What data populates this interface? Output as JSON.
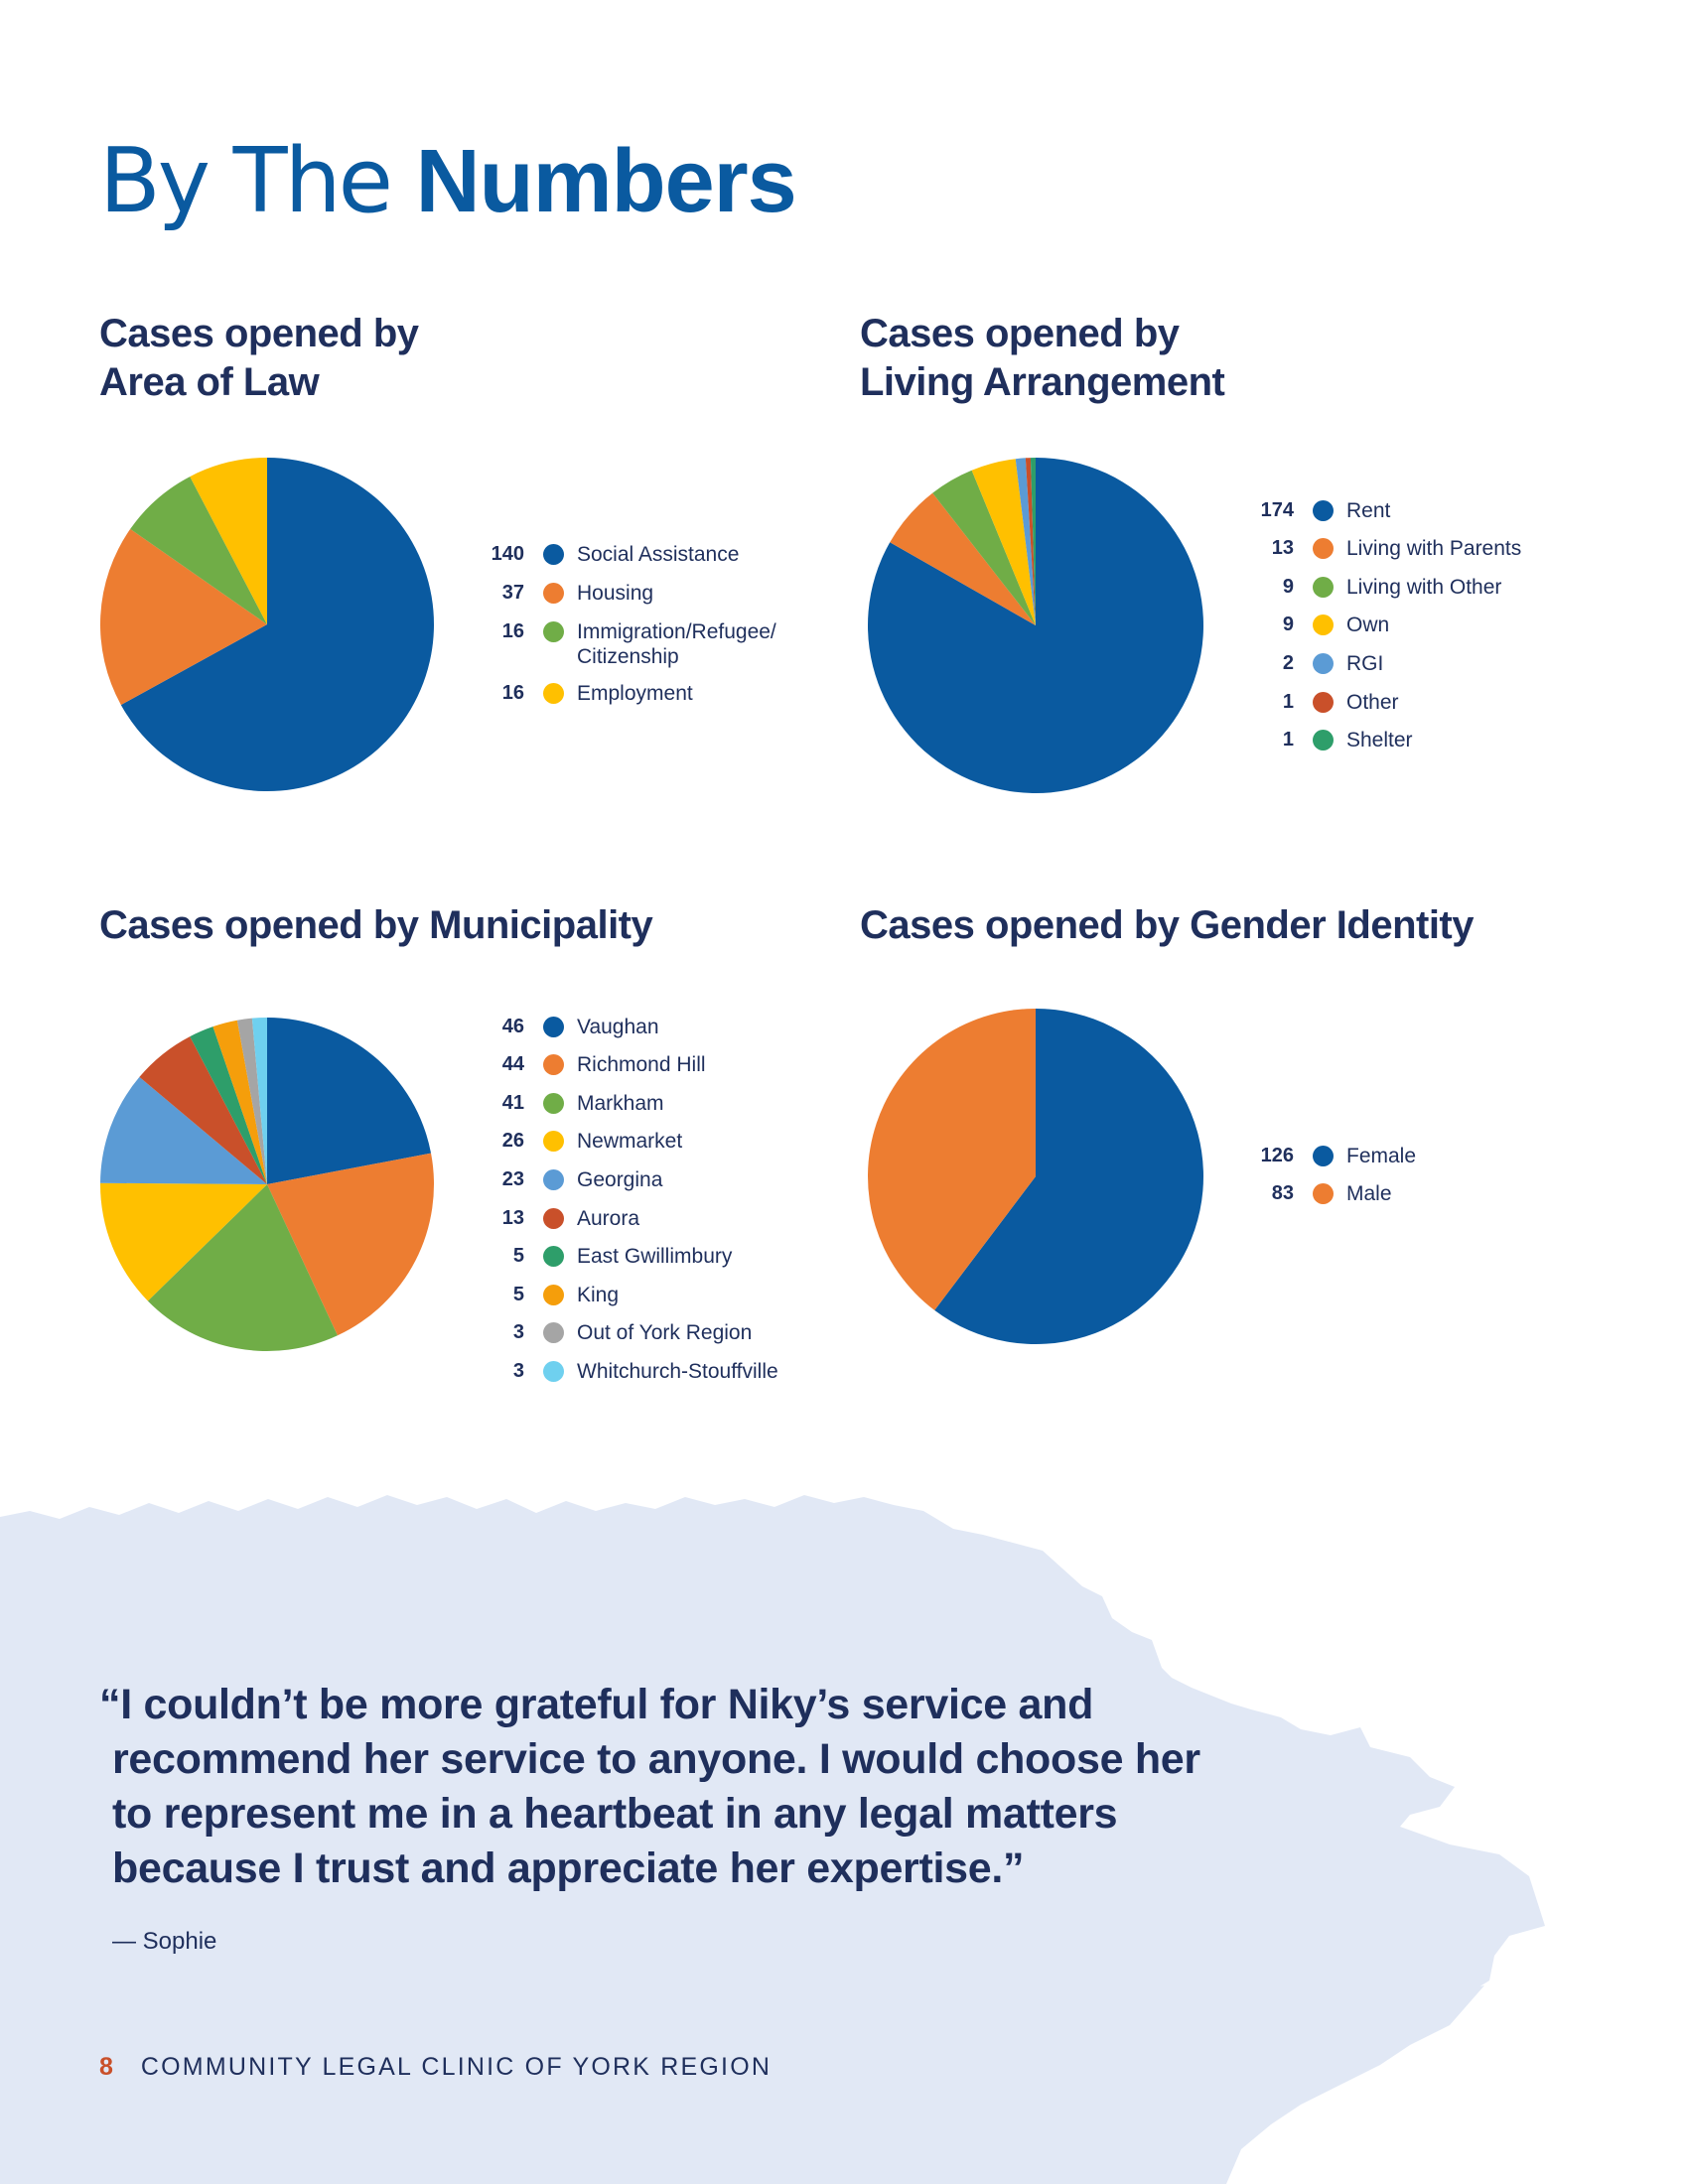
{
  "page": {
    "title_light": "By The Numbers",
    "title_light_part": "By The ",
    "title_bold_part": "Numbers",
    "colors": {
      "title": "#0a5aa0",
      "heading": "#1f2f5c",
      "brush_background": "#e1e8f5",
      "page_number": "#c9502a"
    }
  },
  "chart_data": [
    {
      "type": "pie",
      "title_line1": "Cases opened by",
      "title_line2": "Area of Law",
      "start": "top-clockwise",
      "legend_placement": "right",
      "slices": [
        {
          "label": "Social Assistance",
          "value": 140,
          "value_text": "140",
          "color": "#0a5aa0"
        },
        {
          "label": "Housing",
          "value": 37,
          "value_text": "37",
          "color": "#ed7d31"
        },
        {
          "label": "Immigration/Refugee/",
          "label2": "Citizenship",
          "value": 16,
          "value_text": "16",
          "color": "#70ad47"
        },
        {
          "label": "Employment",
          "value": 16,
          "value_text": "16",
          "color": "#ffc000"
        }
      ]
    },
    {
      "type": "pie",
      "title_line1": "Cases opened by",
      "title_line2": "Living Arrangement",
      "start": "top-clockwise",
      "legend_placement": "right",
      "slices": [
        {
          "label": "Rent",
          "value": 174,
          "value_text": "174",
          "color": "#0a5aa0"
        },
        {
          "label": "Living with Parents",
          "value": 13,
          "value_text": "13",
          "color": "#ed7d31"
        },
        {
          "label": "Living with Other",
          "value": 9,
          "value_text": "9",
          "color": "#70ad47"
        },
        {
          "label": "Own",
          "value": 9,
          "value_text": "9",
          "color": "#ffc000"
        },
        {
          "label": "RGI",
          "value": 2,
          "value_text": "2",
          "color": "#5b9bd5"
        },
        {
          "label": "Other",
          "value": 1,
          "value_text": "1",
          "color": "#c9502a"
        },
        {
          "label": "Shelter",
          "value": 1,
          "value_text": "1",
          "color": "#2e9e6a"
        }
      ]
    },
    {
      "type": "pie",
      "title_line1": "Cases opened by Municipality",
      "start": "top-clockwise",
      "legend_placement": "right",
      "slices": [
        {
          "label": "Vaughan",
          "value": 46,
          "value_text": "46",
          "color": "#0a5aa0"
        },
        {
          "label": "Richmond Hill",
          "value": 44,
          "value_text": "44",
          "color": "#ed7d31"
        },
        {
          "label": "Markham",
          "value": 41,
          "value_text": "41",
          "color": "#70ad47"
        },
        {
          "label": "Newmarket",
          "value": 26,
          "value_text": "26",
          "color": "#ffc000"
        },
        {
          "label": "Georgina",
          "value": 23,
          "value_text": "23",
          "color": "#5b9bd5"
        },
        {
          "label": "Aurora",
          "value": 13,
          "value_text": "13",
          "color": "#c9502a"
        },
        {
          "label": "East Gwillimbury",
          "value": 5,
          "value_text": "5",
          "color": "#2e9e6a"
        },
        {
          "label": "King",
          "value": 5,
          "value_text": "5",
          "color": "#f59e0b"
        },
        {
          "label": "Out of York Region",
          "value": 3,
          "value_text": "3",
          "color": "#a5a5a5"
        },
        {
          "label": "Whitchurch-Stouffville",
          "value": 3,
          "value_text": "3",
          "color": "#6fd0ef"
        }
      ]
    },
    {
      "type": "pie",
      "title_line1": "Cases opened by Gender Identity",
      "start": "top-clockwise",
      "legend_placement": "right",
      "slices": [
        {
          "label": "Female",
          "value": 126,
          "value_text": "126",
          "color": "#0a5aa0"
        },
        {
          "label": "Male",
          "value": 83,
          "value_text": "83",
          "color": "#ed7d31"
        }
      ]
    }
  ],
  "testimonial": {
    "lines": [
      "“I couldn’t be more grateful for Niky’s service and",
      "recommend her service to anyone. I would choose her",
      "to represent me in a heartbeat in any legal matters",
      "because I trust and appreciate her expertise.”"
    ],
    "attribution": "— Sophie"
  },
  "footer": {
    "page_number": "8",
    "organization": "COMMUNITY LEGAL CLINIC OF YORK REGION"
  }
}
